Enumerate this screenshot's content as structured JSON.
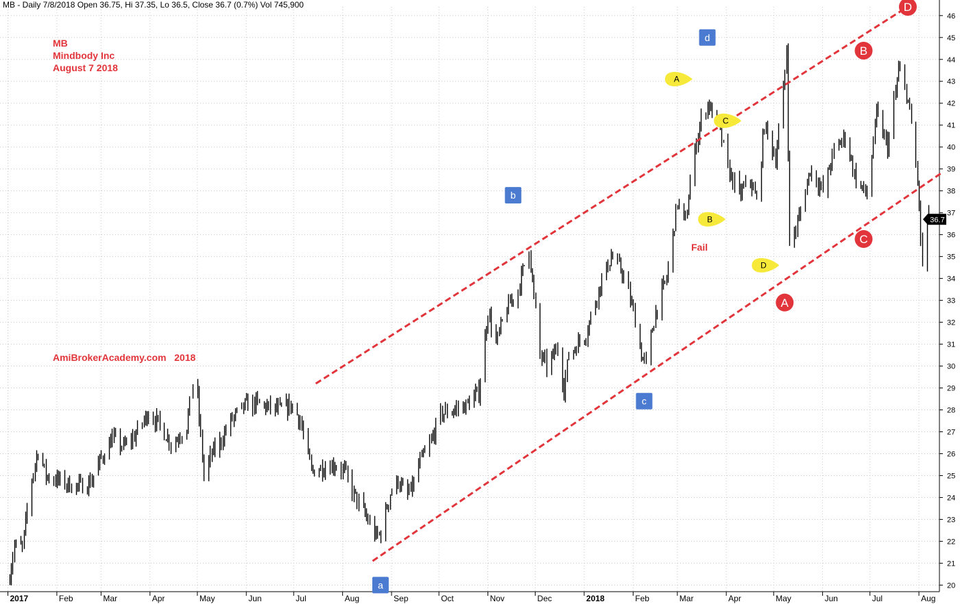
{
  "header": {
    "info": "MB - Daily 7/8/2018 Open 36.75, Hi 37.35, Lo 36.5, Close 36.7 (0.7%) Vol 745,900"
  },
  "titles": {
    "ticker": "MB",
    "company": "Mindbody Inc",
    "date": "August 7 2018",
    "watermark": "AmiBrokerAcademy.com   2018",
    "fail": "Fail"
  },
  "colors": {
    "accent": "#e2353b",
    "label_box": "#4a7bd1",
    "label_bubble": "#f7e93a",
    "price_bar": "#000000",
    "last_price_bg": "#000000"
  },
  "chart_data": {
    "type": "ohlc",
    "x_labels": [
      "2017",
      "Feb",
      "Mar",
      "Apr",
      "May",
      "Jun",
      "Jul",
      "Aug",
      "Sep",
      "Oct",
      "Nov",
      "Dec",
      "2018",
      "Feb",
      "Mar",
      "Apr",
      "May",
      "Jun",
      "Jul",
      "Aug"
    ],
    "y_ticks": [
      20,
      21,
      22,
      23,
      24,
      25,
      26,
      27,
      28,
      29,
      30,
      31,
      32,
      33,
      34,
      35,
      36,
      37,
      38,
      39,
      40,
      41,
      42,
      43,
      44,
      45,
      46
    ],
    "ylim": [
      19.7,
      46.4
    ],
    "grid": true,
    "last_price": "36.7",
    "series": [
      {
        "name": "Close",
        "points": [
          [
            "2017-01-01",
            20.1
          ],
          [
            "2017-01-05",
            21.8
          ],
          [
            "2017-01-10",
            21.7
          ],
          [
            "2017-01-15",
            24.5
          ],
          [
            "2017-01-20",
            26.2
          ],
          [
            "2017-01-25",
            25.0
          ],
          [
            "2017-02-01",
            24.8
          ],
          [
            "2017-02-08",
            24.6
          ],
          [
            "2017-02-15",
            24.5
          ],
          [
            "2017-02-22",
            24.7
          ],
          [
            "2017-03-01",
            25.8
          ],
          [
            "2017-03-08",
            26.7
          ],
          [
            "2017-03-15",
            26.3
          ],
          [
            "2017-03-22",
            26.8
          ],
          [
            "2017-03-31",
            27.9
          ],
          [
            "2017-04-07",
            27.3
          ],
          [
            "2017-04-15",
            26.4
          ],
          [
            "2017-04-24",
            27.3
          ],
          [
            "2017-04-28",
            29.2
          ],
          [
            "2017-05-01",
            28.5
          ],
          [
            "2017-05-05",
            25.0
          ],
          [
            "2017-05-10",
            26.0
          ],
          [
            "2017-05-15",
            26.5
          ],
          [
            "2017-05-22",
            27.5
          ],
          [
            "2017-05-31",
            28.2
          ],
          [
            "2017-06-07",
            28.3
          ],
          [
            "2017-06-15",
            28.1
          ],
          [
            "2017-06-22",
            28.0
          ],
          [
            "2017-06-30",
            28.2
          ],
          [
            "2017-07-05",
            27.5
          ],
          [
            "2017-07-12",
            25.2
          ],
          [
            "2017-07-20",
            25.4
          ],
          [
            "2017-07-27",
            25.5
          ],
          [
            "2017-08-02",
            25.2
          ],
          [
            "2017-08-07",
            24.3
          ],
          [
            "2017-08-12",
            23.6
          ],
          [
            "2017-08-18",
            22.8
          ],
          [
            "2017-08-22",
            22.2
          ],
          [
            "2017-08-25",
            22.4
          ],
          [
            "2017-08-31",
            24.2
          ],
          [
            "2017-09-05",
            24.8
          ],
          [
            "2017-09-10",
            24.0
          ],
          [
            "2017-09-15",
            24.6
          ],
          [
            "2017-09-18",
            25.5
          ],
          [
            "2017-09-25",
            26.4
          ],
          [
            "2017-10-02",
            27.8
          ],
          [
            "2017-10-10",
            28.0
          ],
          [
            "2017-10-18",
            28.2
          ],
          [
            "2017-10-26",
            28.8
          ],
          [
            "2017-11-01",
            32.5
          ],
          [
            "2017-11-06",
            31.0
          ],
          [
            "2017-11-12",
            32.5
          ],
          [
            "2017-11-20",
            33.5
          ],
          [
            "2017-11-27",
            35.5
          ],
          [
            "2017-11-29",
            33.8
          ],
          [
            "2017-12-04",
            30.5
          ],
          [
            "2017-12-08",
            30.0
          ],
          [
            "2017-12-15",
            30.8
          ],
          [
            "2017-12-19",
            29.0
          ],
          [
            "2017-12-22",
            30.5
          ],
          [
            "2018-01-02",
            31.5
          ],
          [
            "2018-01-10",
            33.5
          ],
          [
            "2018-01-18",
            35.0
          ],
          [
            "2018-01-25",
            34.3
          ],
          [
            "2018-02-01",
            32.5
          ],
          [
            "2018-02-06",
            30.5
          ],
          [
            "2018-02-09",
            30.1
          ],
          [
            "2018-02-15",
            32.5
          ],
          [
            "2018-02-22",
            34.0
          ],
          [
            "2018-03-01",
            37.5
          ],
          [
            "2018-03-06",
            36.5
          ],
          [
            "2018-03-10",
            39.0
          ],
          [
            "2018-03-15",
            41.0
          ],
          [
            "2018-03-20",
            42.0
          ],
          [
            "2018-03-27",
            41.0
          ],
          [
            "2018-04-02",
            39.0
          ],
          [
            "2018-04-09",
            37.8
          ],
          [
            "2018-04-16",
            38.5
          ],
          [
            "2018-04-20",
            37.5
          ],
          [
            "2018-04-25",
            41.0
          ],
          [
            "2018-05-02",
            39.5
          ],
          [
            "2018-05-07",
            42.5
          ],
          [
            "2018-05-09",
            44.5
          ],
          [
            "2018-05-11",
            35.5
          ],
          [
            "2018-05-16",
            36.5
          ],
          [
            "2018-05-24",
            39.0
          ],
          [
            "2018-06-01",
            38.0
          ],
          [
            "2018-06-08",
            39.8
          ],
          [
            "2018-06-15",
            40.5
          ],
          [
            "2018-06-22",
            38.5
          ],
          [
            "2018-06-29",
            37.8
          ],
          [
            "2018-07-05",
            41.5
          ],
          [
            "2018-07-12",
            40.0
          ],
          [
            "2018-07-19",
            43.5
          ],
          [
            "2018-07-24",
            42.5
          ],
          [
            "2018-07-27",
            41.0
          ],
          [
            "2018-07-31",
            38.5
          ],
          [
            "2018-08-03",
            34.5
          ],
          [
            "2018-08-07",
            36.7
          ]
        ]
      }
    ],
    "trend_lines": [
      {
        "name": "upper-channel",
        "from": [
          "2017-07-15",
          29.2
        ],
        "to": [
          "2018-07-27",
          46.5
        ]
      },
      {
        "name": "lower-channel",
        "from": [
          "2017-08-20",
          21.1
        ],
        "to": [
          "2018-08-15",
          38.8
        ]
      }
    ],
    "annotations": {
      "box_labels": [
        {
          "text": "a",
          "at": [
            "2017-08-25",
            20.0
          ]
        },
        {
          "text": "b",
          "at": [
            "2017-11-17",
            37.8
          ]
        },
        {
          "text": "c",
          "at": [
            "2018-02-08",
            28.4
          ]
        },
        {
          "text": "d",
          "at": [
            "2018-03-20",
            45.0
          ]
        }
      ],
      "circle_labels": [
        {
          "text": "A",
          "at": [
            "2018-05-08",
            32.9
          ]
        },
        {
          "text": "B",
          "at": [
            "2018-06-27",
            44.4
          ]
        },
        {
          "text": "C",
          "at": [
            "2018-06-27",
            35.8
          ]
        },
        {
          "text": "D",
          "at": [
            "2018-07-25",
            46.4
          ]
        }
      ],
      "bubble_labels": [
        {
          "text": "A",
          "at": [
            "2018-03-01",
            43.1
          ]
        },
        {
          "text": "B",
          "at": [
            "2018-03-22",
            36.7
          ]
        },
        {
          "text": "C",
          "at": [
            "2018-04-01",
            41.2
          ]
        },
        {
          "text": "D",
          "at": [
            "2018-04-25",
            34.6
          ]
        }
      ]
    }
  }
}
